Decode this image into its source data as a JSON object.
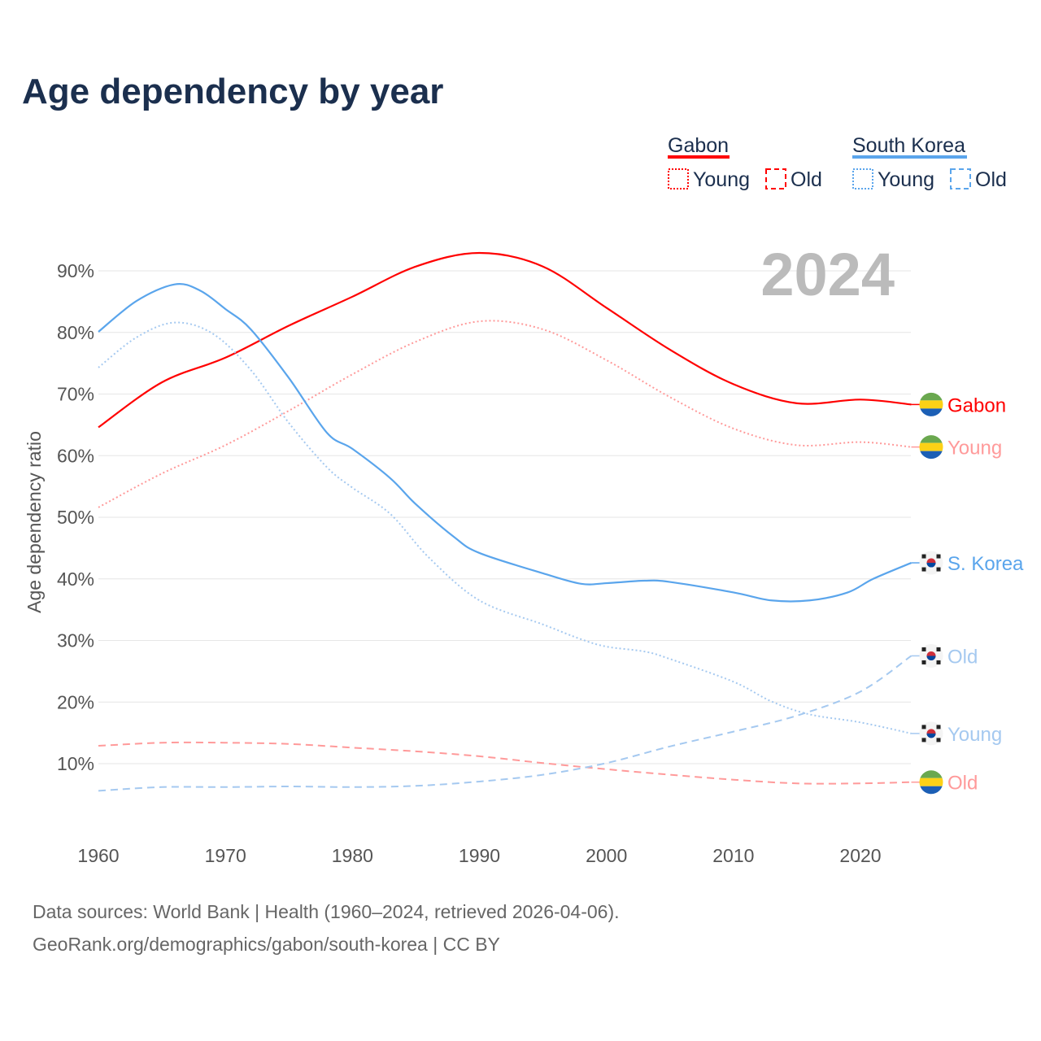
{
  "title": "Age dependency by year",
  "legend": {
    "groups": [
      {
        "name": "Gabon",
        "color": "#ff0000",
        "young": "Young",
        "old": "Old"
      },
      {
        "name": "South Korea",
        "color": "#5aa5ec",
        "young": "Young",
        "old": "Old"
      }
    ]
  },
  "year_badge": "2024",
  "source_line1": "Data sources: World Bank | Health (1960–2024, retrieved 2026-04-06).",
  "source_line2": "GeoRank.org/demographics/gabon/south-korea | CC BY",
  "chart_data": {
    "type": "line",
    "title": "Age dependency by year",
    "xlabel": "",
    "ylabel": "Age dependency ratio",
    "xlim": [
      1960,
      2024
    ],
    "ylim": [
      0,
      95
    ],
    "x_ticks": [
      "1960",
      "1970",
      "1980",
      "1990",
      "2000",
      "2010",
      "2020"
    ],
    "y_ticks": [
      "10%",
      "20%",
      "30%",
      "40%",
      "50%",
      "60%",
      "70%",
      "80%",
      "90%"
    ],
    "grid": true,
    "legend_placement": "top-right",
    "series": [
      {
        "name": "Gabon",
        "label": "Gabon",
        "flag": "gabon",
        "color": "#ff0000",
        "style": "solid",
        "x": [
          1960,
          1965,
          1970,
          1975,
          1980,
          1985,
          1990,
          1995,
          2000,
          2005,
          2010,
          2015,
          2020,
          2024
        ],
        "values": [
          64.6,
          71.9,
          75.9,
          81.1,
          85.8,
          90.7,
          92.9,
          90.7,
          84.0,
          77.2,
          71.6,
          68.5,
          69.1,
          68.3
        ]
      },
      {
        "name": "Gabon Young",
        "label": "Young",
        "flag": "gabon",
        "color": "#ff9a9a",
        "style": "dotted",
        "x": [
          1960,
          1965,
          1970,
          1975,
          1980,
          1985,
          1990,
          1995,
          2000,
          2005,
          2010,
          2015,
          2020,
          2024
        ],
        "values": [
          51.6,
          57.1,
          61.7,
          67.3,
          73.2,
          78.5,
          81.8,
          80.5,
          75.5,
          69.5,
          64.4,
          61.7,
          62.2,
          61.4
        ]
      },
      {
        "name": "Gabon Old",
        "label": "Old",
        "flag": "gabon",
        "color": "#ff9a9a",
        "style": "dashed",
        "x": [
          1960,
          1965,
          1970,
          1975,
          1980,
          1985,
          1990,
          1995,
          2000,
          2005,
          2010,
          2015,
          2020,
          2024
        ],
        "values": [
          12.9,
          13.4,
          13.4,
          13.2,
          12.6,
          12.0,
          11.2,
          10.1,
          9.1,
          8.2,
          7.4,
          6.8,
          6.8,
          7.0
        ]
      },
      {
        "name": "South Korea",
        "label": "S. Korea",
        "flag": "korea",
        "color": "#5aa5ec",
        "style": "solid",
        "x": [
          1960,
          1963,
          1966,
          1968,
          1970,
          1972,
          1975,
          1978,
          1980,
          1983,
          1985,
          1988,
          1990,
          1995,
          1998,
          2000,
          2003,
          2005,
          2010,
          2013,
          2016,
          2019,
          2021,
          2024
        ],
        "values": [
          80.1,
          85.1,
          87.8,
          86.8,
          83.8,
          80.5,
          72.6,
          63.7,
          61.1,
          56.3,
          52.1,
          46.8,
          44.2,
          40.9,
          39.2,
          39.3,
          39.7,
          39.5,
          37.8,
          36.5,
          36.5,
          37.8,
          40.0,
          42.6
        ]
      },
      {
        "name": "South Korea Old",
        "label": "Old",
        "flag": "korea",
        "color": "#a5c9f0",
        "style": "dashed",
        "x": [
          1960,
          1965,
          1970,
          1975,
          1980,
          1985,
          1990,
          1995,
          2000,
          2005,
          2010,
          2015,
          2020,
          2024
        ],
        "values": [
          5.6,
          6.2,
          6.2,
          6.3,
          6.2,
          6.4,
          7.1,
          8.2,
          10.1,
          12.8,
          15.2,
          17.8,
          21.7,
          27.5
        ]
      },
      {
        "name": "South Korea Young",
        "label": "Young",
        "flag": "korea",
        "color": "#a5c9f0",
        "style": "dotted",
        "x": [
          1960,
          1963,
          1966,
          1969,
          1972,
          1975,
          1978,
          1980,
          1983,
          1986,
          1990,
          1995,
          1998,
          2000,
          2003,
          2005,
          2010,
          2013,
          2016,
          2020,
          2024
        ],
        "values": [
          74.3,
          79.2,
          81.6,
          79.8,
          73.9,
          65.3,
          58.1,
          54.8,
          50.5,
          43.5,
          36.5,
          32.6,
          30.2,
          29.0,
          28.2,
          27.0,
          23.3,
          20.1,
          18.0,
          16.7,
          14.9
        ]
      }
    ]
  }
}
